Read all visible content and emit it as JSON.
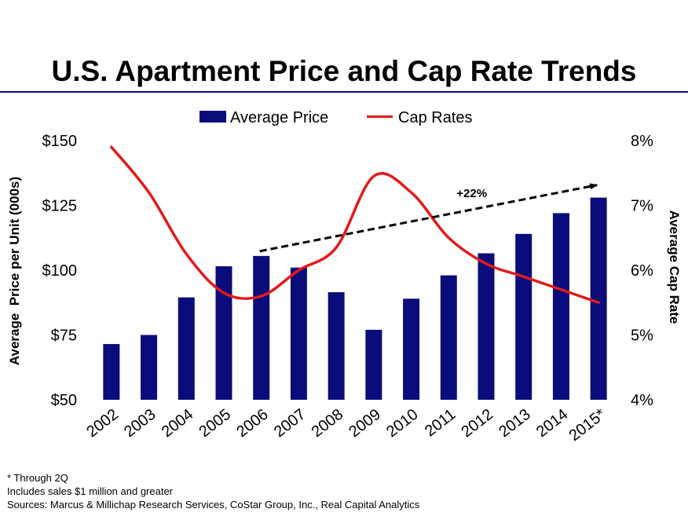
{
  "title": "U.S. Apartment Price and Cap Rate Trends",
  "notes": [
    "* Through 2Q",
    "Includes sales $1 million and greater",
    "Sources: Marcus & Millichap Research Services, CoStar Group, Inc., Real Capital Analytics"
  ],
  "colors": {
    "bar": "#0b0c7c",
    "line": "#e01b1b",
    "rule": "#0b0c8a",
    "arrow": "#000000"
  },
  "chart_data": {
    "type": "bar",
    "categories": [
      "2002",
      "2003",
      "2004",
      "2005",
      "2006",
      "2007",
      "2008",
      "2009",
      "2010",
      "2011",
      "2012",
      "2013",
      "2014",
      "2015*"
    ],
    "series": [
      {
        "name": "Average Price",
        "type": "bar",
        "axis": "left",
        "values": [
          71.5,
          75,
          89.5,
          101.5,
          105.5,
          101,
          91.5,
          77,
          89,
          98,
          106.5,
          114,
          122,
          128
        ]
      },
      {
        "name": "Cap Rates",
        "type": "line",
        "axis": "right",
        "values": [
          7.9,
          7.2,
          6.25,
          5.65,
          5.6,
          6.0,
          6.35,
          7.45,
          7.2,
          6.5,
          6.1,
          5.9,
          5.7,
          5.5
        ]
      }
    ],
    "ylabel": "Average  Price per Unit (000s)",
    "ylim": [
      50,
      150
    ],
    "yticks": [
      "$50",
      "$75",
      "$100",
      "$125",
      "$150"
    ],
    "y2label": "Average Cap Rate",
    "y2lim": [
      4,
      8
    ],
    "y2ticks": [
      "4%",
      "5%",
      "6%",
      "7%",
      "8%"
    ],
    "legend": "top-center",
    "grid": false,
    "annotation": {
      "text": "+22%",
      "from": "2006",
      "to": "2015*"
    }
  }
}
